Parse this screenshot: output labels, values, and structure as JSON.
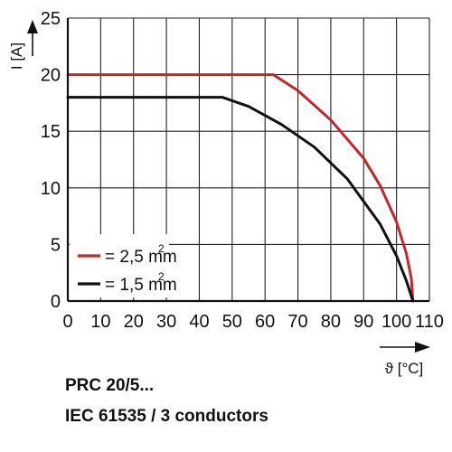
{
  "chart_data": {
    "type": "line",
    "xlabel": "ϑ [°C]",
    "ylabel": "I [A]",
    "xlim": [
      0,
      110
    ],
    "ylim": [
      0,
      25
    ],
    "xticks": [
      0,
      10,
      20,
      30,
      40,
      50,
      60,
      70,
      80,
      90,
      100,
      110
    ],
    "yticks": [
      0,
      5,
      10,
      15,
      20,
      25
    ],
    "grid": true,
    "legend_position": "bottom-left",
    "series": [
      {
        "name": "= 2,5 mm",
        "superscript": "2",
        "color": "#c0282d",
        "x": [
          0,
          62.5,
          70,
          80,
          90,
          95,
          100,
          103,
          104.5,
          105
        ],
        "y": [
          20,
          20,
          18.6,
          16.0,
          12.6,
          10.2,
          7.0,
          4.2,
          2.0,
          0
        ]
      },
      {
        "name": "= 1,5 mm",
        "superscript": "2",
        "color": "#111111",
        "x": [
          0,
          47,
          55,
          65,
          75,
          85,
          95,
          100,
          103,
          105
        ],
        "y": [
          18,
          18,
          17.2,
          15.6,
          13.6,
          10.8,
          6.8,
          4.0,
          1.8,
          0
        ]
      }
    ]
  },
  "caption": {
    "line1": "PRC 20/5...",
    "line2": "IEC 61535 / 3 conductors"
  }
}
